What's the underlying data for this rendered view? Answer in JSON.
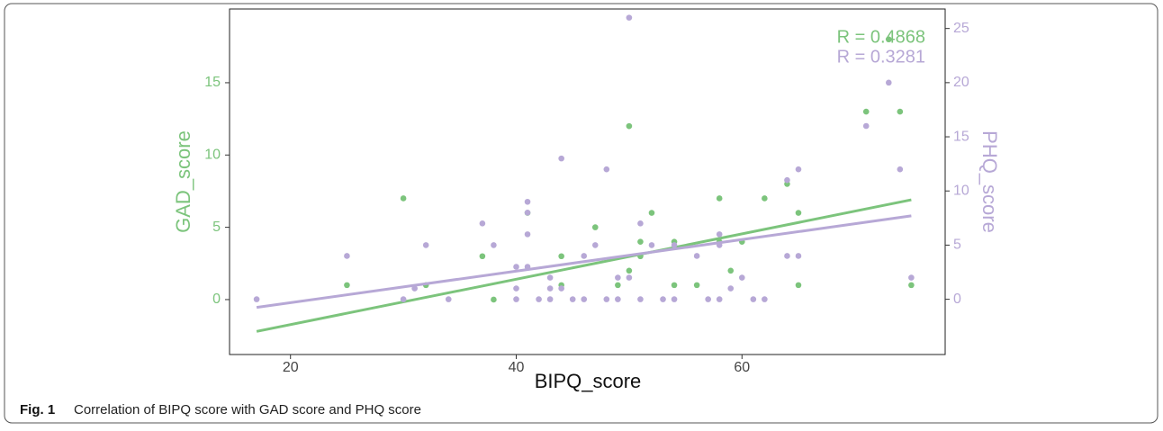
{
  "chart_data": {
    "type": "scatter",
    "x_label": "BIPQ_score",
    "y_label": "GAD_score",
    "y2_label": "PHQ_score",
    "xlim": [
      14.6,
      78.0
    ],
    "xticks": [
      20,
      40,
      60
    ],
    "ylim": [
      -3.8,
      20.1
    ],
    "yticks": [
      0,
      5,
      10,
      15
    ],
    "y2lim": [
      -5.1,
      26.8
    ],
    "y2ticks": [
      0,
      5,
      10,
      15,
      20,
      25
    ],
    "grid": false,
    "series": [
      {
        "name": "GAD_score",
        "color": "#7cc47c",
        "axis": "y",
        "annotation": "R = 0.4868",
        "x": [
          25,
          30,
          32,
          37,
          38,
          41,
          44,
          44,
          47,
          50,
          50,
          49,
          51,
          51,
          52,
          54,
          54,
          56,
          58,
          58,
          59,
          60,
          62,
          64,
          65,
          65,
          71,
          73,
          74,
          75
        ],
        "values": [
          1,
          7,
          1,
          3,
          0,
          6,
          3,
          1,
          5,
          12,
          2,
          1,
          4,
          3,
          6,
          4,
          1,
          1,
          7,
          4,
          2,
          4,
          7,
          8,
          6,
          1,
          13,
          18,
          13,
          1
        ],
        "fit": {
          "x": [
            17,
            75
          ],
          "values": [
            -2.2,
            6.9
          ]
        }
      },
      {
        "name": "PHQ_score",
        "color": "#b7a8d6",
        "axis": "y2",
        "annotation": "R = 0.3281",
        "x": [
          17,
          25,
          30,
          31,
          32,
          34,
          37,
          38,
          40,
          40,
          40,
          41,
          41,
          41,
          41,
          42,
          43,
          43,
          43,
          44,
          44,
          45,
          46,
          46,
          47,
          48,
          48,
          49,
          49,
          50,
          50,
          51,
          51,
          52,
          53,
          54,
          54,
          56,
          57,
          58,
          58,
          58,
          59,
          60,
          61,
          62,
          64,
          64,
          65,
          65,
          71,
          73,
          74,
          75
        ],
        "values": [
          0,
          4,
          0,
          1,
          5,
          0,
          7,
          5,
          3,
          1,
          0,
          9,
          8,
          6,
          3,
          0,
          0,
          1,
          2,
          13,
          1,
          0,
          4,
          0,
          5,
          12,
          0,
          2,
          0,
          26,
          2,
          7,
          0,
          5,
          0,
          5,
          0,
          4,
          0,
          6,
          5,
          0,
          1,
          2,
          0,
          0,
          11,
          4,
          12,
          4,
          16,
          20,
          12,
          2
        ],
        "fit": {
          "x": [
            17,
            75
          ],
          "values": [
            -0.75,
            7.7
          ]
        }
      }
    ]
  },
  "caption": {
    "label": "Fig. 1",
    "text": "Correlation of BIPQ score with GAD score and PHQ score"
  }
}
